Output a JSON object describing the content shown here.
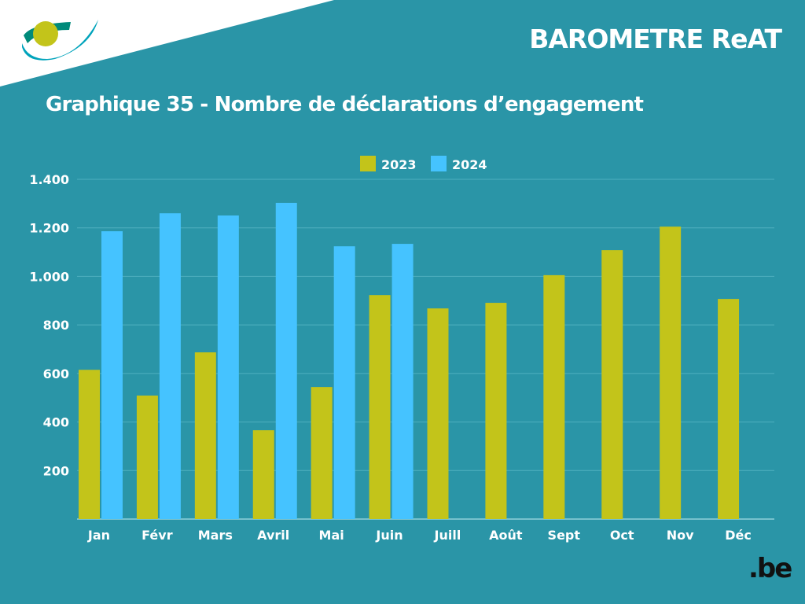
{
  "header": {
    "title": "BAROMETRE ReAT"
  },
  "footer": {
    "domain_logo": ".be"
  },
  "colors": {
    "background": "#2a95a7",
    "series_2023": "#c3c41a",
    "series_2024": "#45c3ff"
  },
  "chart_data": {
    "type": "bar",
    "title": "Graphique 35 - Nombre de déclarations d’engagement",
    "xlabel": "",
    "ylabel": "",
    "ylim": [
      0,
      1400
    ],
    "yticks": [
      "200",
      "400",
      "600",
      "800",
      "1.000",
      "1.200",
      "1.400"
    ],
    "ytick_values": [
      200,
      400,
      600,
      800,
      1000,
      1200,
      1400
    ],
    "grid": true,
    "legend": "top-center",
    "categories": [
      "Jan",
      "Févr",
      "Mars",
      "Avril",
      "Mai",
      "Juin",
      "Juill",
      "Août",
      "Sept",
      "Oct",
      "Nov",
      "Déc"
    ],
    "series": [
      {
        "name": "2023",
        "color": "#c3c41a",
        "values": [
          615,
          509,
          687,
          366,
          544,
          923,
          868,
          891,
          1005,
          1108,
          1205,
          907
        ]
      },
      {
        "name": "2024",
        "color": "#45c3ff",
        "values": [
          1186,
          1260,
          1251,
          1303,
          1124,
          1134,
          null,
          null,
          null,
          null,
          null,
          null
        ]
      }
    ]
  }
}
